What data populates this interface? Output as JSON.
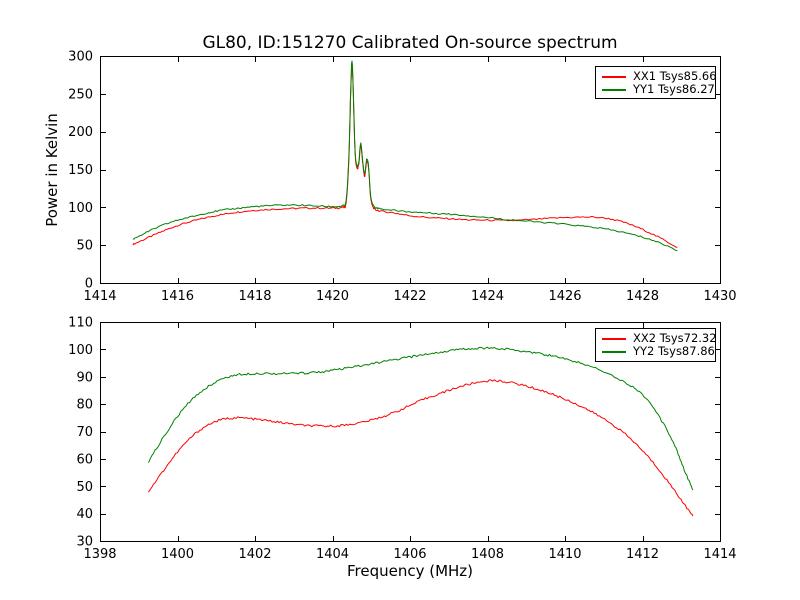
{
  "figure": {
    "title": "GL80, ID:151270 Calibrated On-source spectrum",
    "background": "#ffffff",
    "axis_color": "#000000"
  },
  "chart_data": [
    {
      "type": "line",
      "title": "",
      "xlabel": "",
      "ylabel": "Power in Kelvin",
      "xlim": [
        1414,
        1430
      ],
      "ylim": [
        0,
        300
      ],
      "xticks": [
        1414,
        1416,
        1418,
        1420,
        1422,
        1424,
        1426,
        1428,
        1430
      ],
      "yticks": [
        0,
        50,
        100,
        150,
        200,
        250,
        300
      ],
      "grid": false,
      "legend_position": "upper right",
      "series": [
        {
          "name": "XX1 Tsys85.66",
          "color": "#ff0000",
          "noise": 1.0,
          "points": [
            [
              1414.85,
              51
            ],
            [
              1415.2,
              59
            ],
            [
              1415.6,
              68
            ],
            [
              1416.0,
              76
            ],
            [
              1416.4,
              82
            ],
            [
              1416.8,
              87
            ],
            [
              1417.2,
              91
            ],
            [
              1417.6,
              94
            ],
            [
              1418.0,
              96
            ],
            [
              1418.5,
              97.5
            ],
            [
              1419.0,
              98.5
            ],
            [
              1419.5,
              99
            ],
            [
              1420.0,
              99
            ],
            [
              1420.25,
              100
            ],
            [
              1420.35,
              106
            ],
            [
              1420.42,
              160
            ],
            [
              1420.47,
              250
            ],
            [
              1420.5,
              289
            ],
            [
              1420.53,
              262
            ],
            [
              1420.58,
              175
            ],
            [
              1420.63,
              152
            ],
            [
              1420.68,
              158
            ],
            [
              1420.73,
              182
            ],
            [
              1420.78,
              158
            ],
            [
              1420.83,
              141
            ],
            [
              1420.88,
              160
            ],
            [
              1420.93,
              152
            ],
            [
              1420.98,
              115
            ],
            [
              1421.05,
              100
            ],
            [
              1421.2,
              95.5
            ],
            [
              1421.6,
              92.5
            ],
            [
              1422.0,
              89
            ],
            [
              1422.5,
              86.5
            ],
            [
              1423.0,
              85
            ],
            [
              1423.5,
              83.5
            ],
            [
              1424.0,
              83
            ],
            [
              1424.6,
              82.5
            ],
            [
              1425.2,
              84
            ],
            [
              1425.8,
              86
            ],
            [
              1426.4,
              87
            ],
            [
              1426.9,
              86.5
            ],
            [
              1427.4,
              82
            ],
            [
              1427.9,
              73
            ],
            [
              1428.4,
              61
            ],
            [
              1428.9,
              47
            ]
          ]
        },
        {
          "name": "YY1 Tsys86.27",
          "color": "#008000",
          "noise": 1.0,
          "points": [
            [
              1414.85,
              58
            ],
            [
              1415.2,
              67
            ],
            [
              1415.6,
              76
            ],
            [
              1416.0,
              83
            ],
            [
              1416.4,
              88
            ],
            [
              1416.8,
              93
            ],
            [
              1417.2,
              96.5
            ],
            [
              1417.6,
              99
            ],
            [
              1418.0,
              101
            ],
            [
              1418.5,
              102.5
            ],
            [
              1419.0,
              103
            ],
            [
              1419.5,
              102
            ],
            [
              1420.0,
              101
            ],
            [
              1420.25,
              102
            ],
            [
              1420.35,
              109
            ],
            [
              1420.42,
              165
            ],
            [
              1420.47,
              255
            ],
            [
              1420.5,
              293
            ],
            [
              1420.53,
              266
            ],
            [
              1420.58,
              178
            ],
            [
              1420.63,
              155
            ],
            [
              1420.68,
              161
            ],
            [
              1420.73,
              185
            ],
            [
              1420.78,
              161
            ],
            [
              1420.83,
              144
            ],
            [
              1420.88,
              163
            ],
            [
              1420.93,
              155
            ],
            [
              1420.98,
              118
            ],
            [
              1421.05,
              103
            ],
            [
              1421.2,
              98.5
            ],
            [
              1421.6,
              96
            ],
            [
              1422.0,
              94
            ],
            [
              1422.5,
              92.5
            ],
            [
              1423.0,
              91
            ],
            [
              1423.5,
              89
            ],
            [
              1424.0,
              86.5
            ],
            [
              1424.6,
              83.5
            ],
            [
              1425.2,
              81
            ],
            [
              1425.8,
              78.5
            ],
            [
              1426.4,
              75.5
            ],
            [
              1426.9,
              72.5
            ],
            [
              1427.4,
              68
            ],
            [
              1427.9,
              62
            ],
            [
              1428.4,
              54
            ],
            [
              1428.9,
              43
            ]
          ]
        }
      ]
    },
    {
      "type": "line",
      "title": "",
      "xlabel": "Frequency (MHz)",
      "ylabel": "",
      "xlim": [
        1398,
        1414
      ],
      "ylim": [
        30,
        110
      ],
      "xticks": [
        1398,
        1400,
        1402,
        1404,
        1406,
        1408,
        1410,
        1412,
        1414
      ],
      "yticks": [
        30,
        40,
        50,
        60,
        70,
        80,
        90,
        100,
        110
      ],
      "grid": false,
      "legend_position": "upper right",
      "series": [
        {
          "name": "XX2 Tsys72.32",
          "color": "#ff0000",
          "noise": 0.4,
          "points": [
            [
              1399.25,
              48
            ],
            [
              1399.6,
              55
            ],
            [
              1400.0,
              62.5
            ],
            [
              1400.4,
              68.5
            ],
            [
              1400.8,
              72.5
            ],
            [
              1401.2,
              74.5
            ],
            [
              1401.6,
              75
            ],
            [
              1402.0,
              74.5
            ],
            [
              1402.4,
              73.8
            ],
            [
              1402.8,
              73
            ],
            [
              1403.2,
              72.3
            ],
            [
              1403.6,
              72
            ],
            [
              1404.0,
              72
            ],
            [
              1404.4,
              72.5
            ],
            [
              1404.8,
              73.5
            ],
            [
              1405.2,
              75
            ],
            [
              1405.6,
              77
            ],
            [
              1406.0,
              79.5
            ],
            [
              1406.4,
              82
            ],
            [
              1406.8,
              84
            ],
            [
              1407.2,
              86
            ],
            [
              1407.6,
              87.5
            ],
            [
              1408.0,
              88.5
            ],
            [
              1408.4,
              88.3
            ],
            [
              1408.8,
              87.3
            ],
            [
              1409.2,
              85.8
            ],
            [
              1409.6,
              84
            ],
            [
              1410.0,
              81.8
            ],
            [
              1410.4,
              79.3
            ],
            [
              1410.8,
              76.3
            ],
            [
              1411.2,
              72.8
            ],
            [
              1411.6,
              68.5
            ],
            [
              1412.0,
              63
            ],
            [
              1412.4,
              56.5
            ],
            [
              1412.8,
              49
            ],
            [
              1413.05,
              44
            ],
            [
              1413.3,
              39
            ]
          ]
        },
        {
          "name": "YY2 Tsys87.86",
          "color": "#008000",
          "noise": 0.4,
          "points": [
            [
              1399.25,
              59
            ],
            [
              1399.6,
              67
            ],
            [
              1400.0,
              75.5
            ],
            [
              1400.4,
              82
            ],
            [
              1400.8,
              86.5
            ],
            [
              1401.2,
              89.5
            ],
            [
              1401.6,
              90.8
            ],
            [
              1402.0,
              91.2
            ],
            [
              1402.4,
              91.2
            ],
            [
              1402.8,
              91.2
            ],
            [
              1403.2,
              91.3
            ],
            [
              1403.6,
              91.7
            ],
            [
              1404.0,
              92.3
            ],
            [
              1404.4,
              93.2
            ],
            [
              1404.8,
              94.2
            ],
            [
              1405.2,
              95.2
            ],
            [
              1405.6,
              96.2
            ],
            [
              1406.0,
              97.2
            ],
            [
              1406.4,
              98.2
            ],
            [
              1406.8,
              99
            ],
            [
              1407.2,
              99.8
            ],
            [
              1407.6,
              100.3
            ],
            [
              1408.0,
              100.5
            ],
            [
              1408.4,
              100.2
            ],
            [
              1408.8,
              99.6
            ],
            [
              1409.2,
              98.8
            ],
            [
              1409.6,
              97.8
            ],
            [
              1410.0,
              96.5
            ],
            [
              1410.4,
              95
            ],
            [
              1411.0,
              92
            ],
            [
              1411.6,
              87.5
            ],
            [
              1412.0,
              83.5
            ],
            [
              1412.4,
              76
            ],
            [
              1412.8,
              66
            ],
            [
              1413.05,
              57
            ],
            [
              1413.3,
              48.5
            ]
          ]
        }
      ]
    }
  ]
}
